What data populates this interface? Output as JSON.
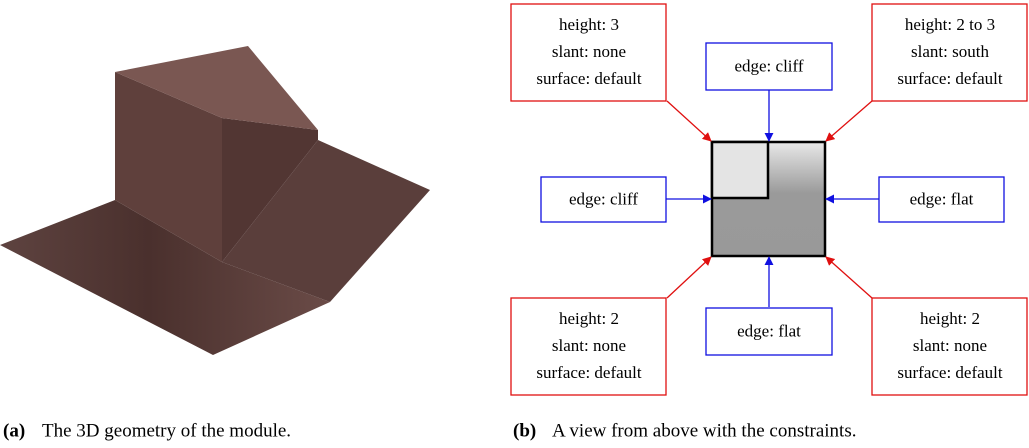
{
  "panel_a": {
    "caption": {
      "label": "(a)",
      "text": "The 3D geometry of the module."
    }
  },
  "panel_b": {
    "caption": {
      "label": "(b)",
      "text": "A view from above with the constraints."
    },
    "corners": [
      {
        "lines": [
          "height: 3",
          "slant: none",
          "surface: default"
        ]
      },
      {
        "lines": [
          "height: 2 to 3",
          "slant: south",
          "surface: default"
        ]
      },
      {
        "lines": [
          "height: 2",
          "slant: none",
          "surface: default"
        ]
      },
      {
        "lines": [
          "height: 2",
          "slant: none",
          "surface: default"
        ]
      }
    ],
    "edges": [
      {
        "label": "edge: cliff"
      },
      {
        "label": "edge: cliff"
      },
      {
        "label": "edge: flat"
      },
      {
        "label": "edge: flat"
      }
    ]
  }
}
